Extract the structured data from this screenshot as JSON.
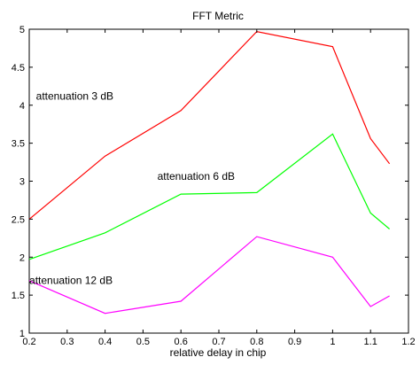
{
  "chart_data": {
    "type": "line",
    "title": "FFT Metric",
    "xlabel": "relative delay in chip",
    "ylabel": "",
    "xlim": [
      0.2,
      1.2
    ],
    "ylim": [
      1,
      5
    ],
    "xticks": [
      0.2,
      0.3,
      0.4,
      0.5,
      0.6,
      0.7,
      0.8,
      0.9,
      1,
      1.1,
      1.2
    ],
    "xtick_labels": [
      "0.2",
      "0.3",
      "0.4",
      "0.5",
      "0.6",
      "0.7",
      "0.8",
      "0.9",
      "1",
      "1.1",
      "1.2"
    ],
    "yticks": [
      1,
      1.5,
      2,
      2.5,
      3,
      3.5,
      4,
      4.5,
      5
    ],
    "ytick_labels": [
      "1",
      "1.5",
      "2",
      "2.5",
      "3",
      "3.5",
      "4",
      "4.5",
      "5"
    ],
    "grid": false,
    "legend": "none",
    "series": [
      {
        "name": "attenuation 3 dB",
        "color": "#ff0000",
        "x": [
          0.2,
          0.4,
          0.6,
          0.8,
          1.0,
          1.1,
          1.15
        ],
        "values": [
          2.5,
          3.33,
          3.93,
          4.97,
          4.77,
          3.56,
          3.23
        ]
      },
      {
        "name": "attenuation 6 dB",
        "color": "#00ff00",
        "x": [
          0.2,
          0.4,
          0.6,
          0.8,
          1.0,
          1.1,
          1.15
        ],
        "values": [
          1.97,
          2.32,
          2.83,
          2.85,
          3.62,
          2.58,
          2.37
        ]
      },
      {
        "name": "attenuation 12 dB",
        "color": "#ff00ff",
        "x": [
          0.2,
          0.4,
          0.6,
          0.8,
          1.0,
          1.1,
          1.15
        ],
        "values": [
          1.69,
          1.26,
          1.42,
          2.27,
          2.0,
          1.35,
          1.49
        ]
      }
    ],
    "annotations": [
      {
        "text": "attenuation 3 dB",
        "x": 0.32,
        "y": 4.07
      },
      {
        "text": "attenuation 6 dB",
        "x": 0.64,
        "y": 3.02
      },
      {
        "text": "attenuation 12 dB",
        "x": 0.31,
        "y": 1.65
      }
    ]
  }
}
